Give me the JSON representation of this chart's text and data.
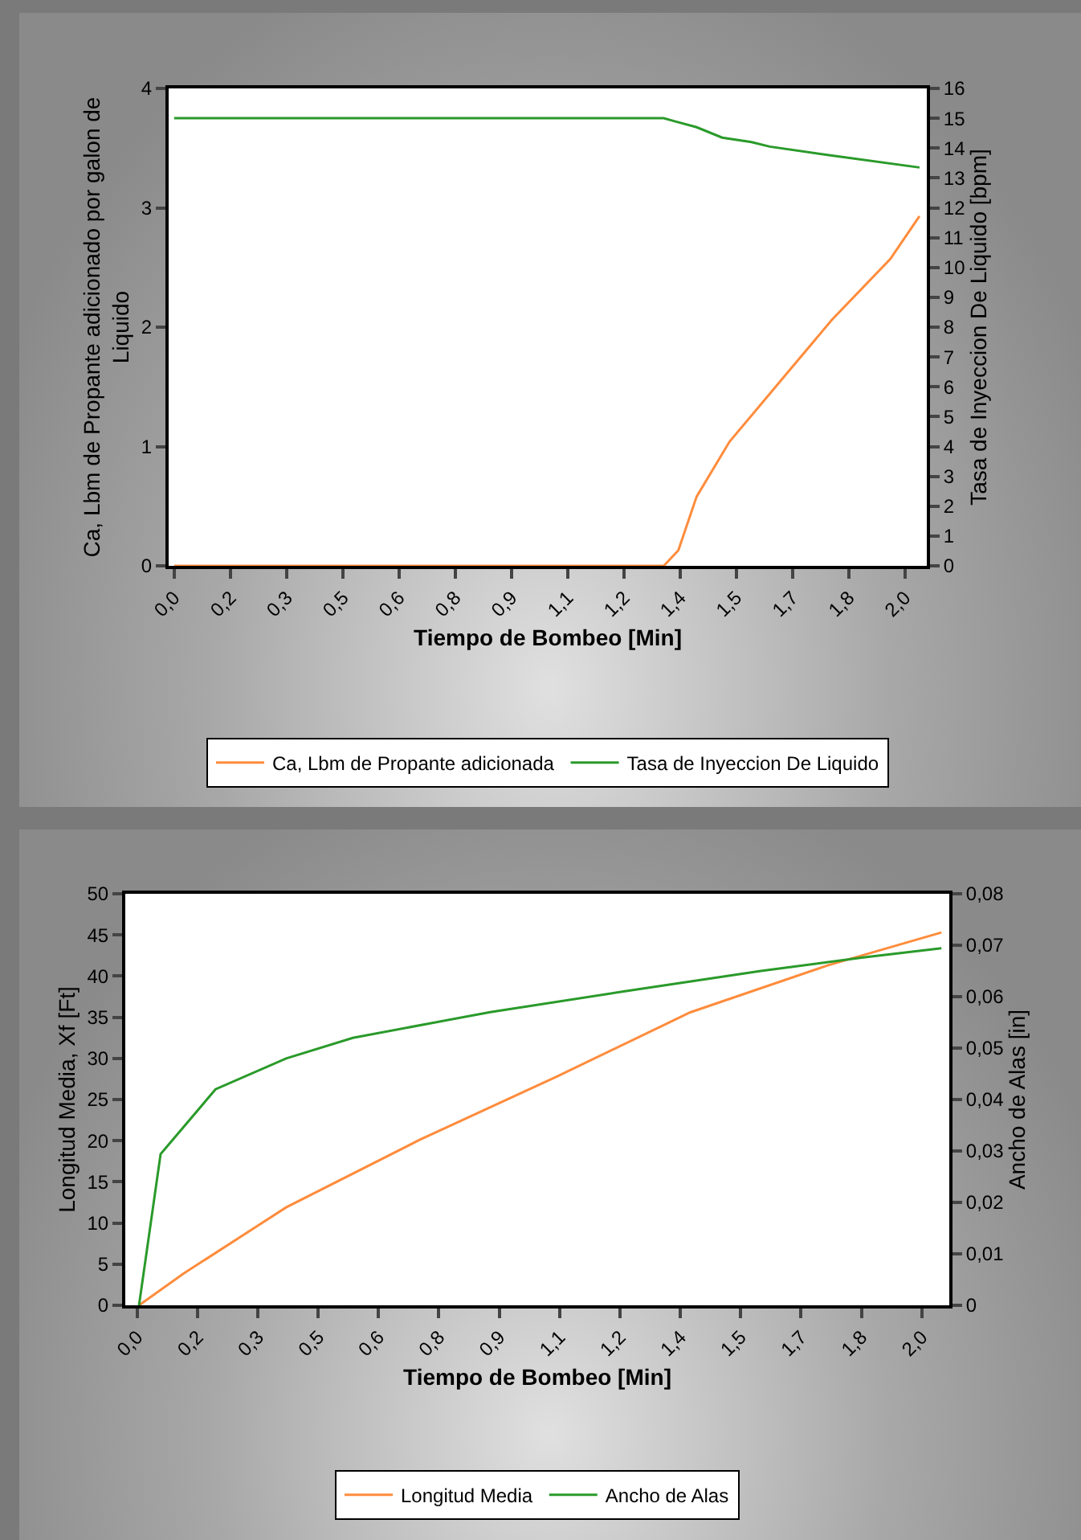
{
  "chart_data": [
    {
      "type": "line",
      "xlabel": "Tiempo de Bombeo [Min]",
      "ylabel": "Ca, Lbm de Propante adicionado por galon de Liquido",
      "y2label": "Tasa de Inyeccion De Liquido [bpm]",
      "legend": "bottom",
      "grid": false,
      "xlim": [
        -0.015,
        2.06
      ],
      "xticks": [
        {
          "value": 0,
          "label": "0,0"
        },
        {
          "value": 0.154,
          "label": "0,2"
        },
        {
          "value": 0.308,
          "label": "0,3"
        },
        {
          "value": 0.462,
          "label": "0,5"
        },
        {
          "value": 0.615,
          "label": "0,6"
        },
        {
          "value": 0.769,
          "label": "0,8"
        },
        {
          "value": 0.923,
          "label": "0,9"
        },
        {
          "value": 1.077,
          "label": "1,1"
        },
        {
          "value": 1.231,
          "label": "1,2"
        },
        {
          "value": 1.385,
          "label": "1,4"
        },
        {
          "value": 1.538,
          "label": "1,5"
        },
        {
          "value": 1.692,
          "label": "1,7"
        },
        {
          "value": 1.846,
          "label": "1,8"
        },
        {
          "value": 2,
          "label": "2,0"
        }
      ],
      "ylim": [
        0,
        4
      ],
      "yticks": [
        0,
        1,
        2,
        3,
        4
      ],
      "y2lim": [
        0,
        16
      ],
      "y2ticks": [
        0,
        1,
        2,
        3,
        4,
        5,
        6,
        7,
        8,
        9,
        10,
        11,
        12,
        13,
        14,
        15,
        16
      ],
      "series": [
        {
          "name": "Ca, Lbm de Propante adicionada",
          "color": "#ff8c3c",
          "x": [
            0,
            1.34,
            1.38,
            1.43,
            1.52,
            1.66,
            1.8,
            1.96,
            2.04
          ],
          "values": [
            0,
            0,
            0.13,
            0.58,
            1.04,
            1.55,
            2.06,
            2.57,
            2.93
          ]
        },
        {
          "name": "Tasa de Inyeccion De Liquido",
          "color": "#2a9a2a",
          "axis": "y2",
          "x": [
            0,
            1.34,
            1.37,
            1.43,
            1.5,
            1.58,
            1.63,
            1.8,
            2.04
          ],
          "values": [
            15,
            15,
            14.9,
            14.7,
            14.35,
            14.2,
            14.05,
            13.75,
            13.35
          ]
        }
      ]
    },
    {
      "type": "line",
      "xlabel": "Tiempo de Bombeo [Min]",
      "ylabel": "Longitud Media, Xf [Ft]",
      "y2label": "Ancho de Alas [in]",
      "legend": "bottom",
      "grid": false,
      "xlim": [
        -0.03,
        2.07
      ],
      "xticks": [
        {
          "value": 0,
          "label": "0,0"
        },
        {
          "value": 0.154,
          "label": "0,2"
        },
        {
          "value": 0.308,
          "label": "0,3"
        },
        {
          "value": 0.462,
          "label": "0,5"
        },
        {
          "value": 0.615,
          "label": "0,6"
        },
        {
          "value": 0.769,
          "label": "0,8"
        },
        {
          "value": 0.923,
          "label": "0,9"
        },
        {
          "value": 1.077,
          "label": "1,1"
        },
        {
          "value": 1.231,
          "label": "1,2"
        },
        {
          "value": 1.385,
          "label": "1,4"
        },
        {
          "value": 1.538,
          "label": "1,5"
        },
        {
          "value": 1.692,
          "label": "1,7"
        },
        {
          "value": 1.846,
          "label": "1,8"
        },
        {
          "value": 2,
          "label": "2,0"
        }
      ],
      "ylim": [
        0,
        50
      ],
      "yticks": [
        0,
        5,
        10,
        15,
        20,
        25,
        30,
        35,
        40,
        45,
        50
      ],
      "y2lim": [
        0,
        0.08
      ],
      "y2ticks": [
        0,
        {
          "value": 0.01,
          "label": "0,01"
        },
        {
          "value": 0.02,
          "label": "0,02"
        },
        {
          "value": 0.03,
          "label": "0,03"
        },
        {
          "value": 0.04,
          "label": "0,04"
        },
        {
          "value": 0.05,
          "label": "0,05"
        },
        {
          "value": 0.06,
          "label": "0,06"
        },
        {
          "value": 0.07,
          "label": "0,07"
        },
        {
          "value": 0.08,
          "label": "0,08"
        }
      ],
      "series": [
        {
          "name": "Longitud Media",
          "color": "#ff8c3c",
          "x": [
            0.005,
            0.12,
            0.38,
            0.72,
            1.07,
            1.41,
            1.76,
            2.05
          ],
          "values": [
            0,
            3.9,
            11.9,
            20.1,
            27.8,
            35.6,
            41.3,
            45.3
          ]
        },
        {
          "name": "Ancho de Alas",
          "color": "#2a9a2a",
          "axis": "y2",
          "x": [
            0.005,
            0.06,
            0.078,
            0.2,
            0.38,
            0.55,
            0.9,
            1.24,
            1.59,
            1.85,
            2.05
          ],
          "values": [
            0,
            0.0294,
            0.031,
            0.042,
            0.048,
            0.052,
            0.057,
            0.061,
            0.065,
            0.0676,
            0.0694
          ]
        }
      ]
    }
  ]
}
